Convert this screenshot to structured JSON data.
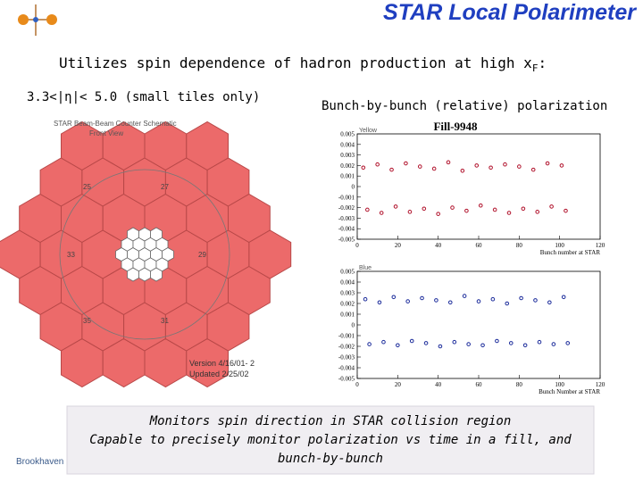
{
  "header": {
    "title": "STAR Local Polarimeter",
    "subtitle": "Utilizes spin dependence of hadron production at high x",
    "subtitle_sub": "F",
    "subtitle_end": ":"
  },
  "left": {
    "label": "3.3<|η|< 5.0 (small tiles only)",
    "caption": "STAR Beam-Beam Counter Schematic",
    "view": "Front View",
    "version": "Version 4/16/01- 2",
    "updated": "Updated 2/25/02",
    "tiles": [
      "25",
      "27",
      "29",
      "31",
      "33",
      "35"
    ]
  },
  "right": {
    "label": "Bunch-by-bunch (relative) polarization",
    "fill": "Fill-9948",
    "panels": [
      {
        "label": "Yellow",
        "xlabel": "Bunch number at STAR",
        "xlim": [
          0,
          120
        ],
        "xticks": [
          0,
          20,
          40,
          60,
          80,
          100,
          120
        ],
        "ylim": [
          -0.005,
          0.005
        ],
        "yticks": [
          0.005,
          0.004,
          0.003,
          0.002,
          0.001,
          0,
          -0.001,
          -0.002,
          -0.003,
          -0.004,
          -0.005
        ],
        "color": "#b0102a",
        "x": [
          3,
          5,
          10,
          12,
          17,
          19,
          24,
          26,
          31,
          33,
          38,
          40,
          45,
          47,
          52,
          54,
          59,
          61,
          66,
          68,
          73,
          75,
          80,
          82,
          87,
          89,
          94,
          96,
          101,
          103
        ],
        "y": [
          0.0018,
          -0.0022,
          0.0021,
          -0.0025,
          0.0016,
          -0.0019,
          0.0022,
          -0.0024,
          0.0019,
          -0.0021,
          0.0017,
          -0.0026,
          0.0023,
          -0.002,
          0.0015,
          -0.0023,
          0.002,
          -0.0018,
          0.0018,
          -0.0022,
          0.0021,
          -0.0025,
          0.0019,
          -0.0021,
          0.0016,
          -0.0024,
          0.0022,
          -0.0019,
          0.002,
          -0.0023
        ]
      },
      {
        "label": "Blue",
        "xlabel": "Bunch Number at STAR",
        "xlim": [
          0,
          120
        ],
        "xticks": [
          0,
          20,
          40,
          60,
          80,
          100,
          120
        ],
        "ylim": [
          -0.005,
          0.005
        ],
        "yticks": [
          0.005,
          0.004,
          0.003,
          0.002,
          0.001,
          0,
          -0.001,
          -0.002,
          -0.003,
          -0.004,
          -0.005
        ],
        "color": "#1a2a9a",
        "x": [
          4,
          6,
          11,
          13,
          18,
          20,
          25,
          27,
          32,
          34,
          39,
          41,
          46,
          48,
          53,
          55,
          60,
          62,
          67,
          69,
          74,
          76,
          81,
          83,
          88,
          90,
          95,
          97,
          102,
          104
        ],
        "y": [
          0.0024,
          -0.0018,
          0.0021,
          -0.0016,
          0.0026,
          -0.0019,
          0.0022,
          -0.0015,
          0.0025,
          -0.0017,
          0.0023,
          -0.002,
          0.0021,
          -0.0016,
          0.0027,
          -0.0018,
          0.0022,
          -0.0019,
          0.0024,
          -0.0015,
          0.002,
          -0.0017,
          0.0025,
          -0.0019,
          0.0023,
          -0.0016,
          0.0021,
          -0.0018,
          0.0026,
          -0.0017
        ]
      }
    ]
  },
  "box": {
    "lines": [
      "Monitors spin direction in STAR collision region",
      "Capable to precisely monitor polarization vs time in a fill, and",
      "bunch-by-bunch"
    ]
  },
  "footer": {
    "left": "Brookhaven S"
  }
}
